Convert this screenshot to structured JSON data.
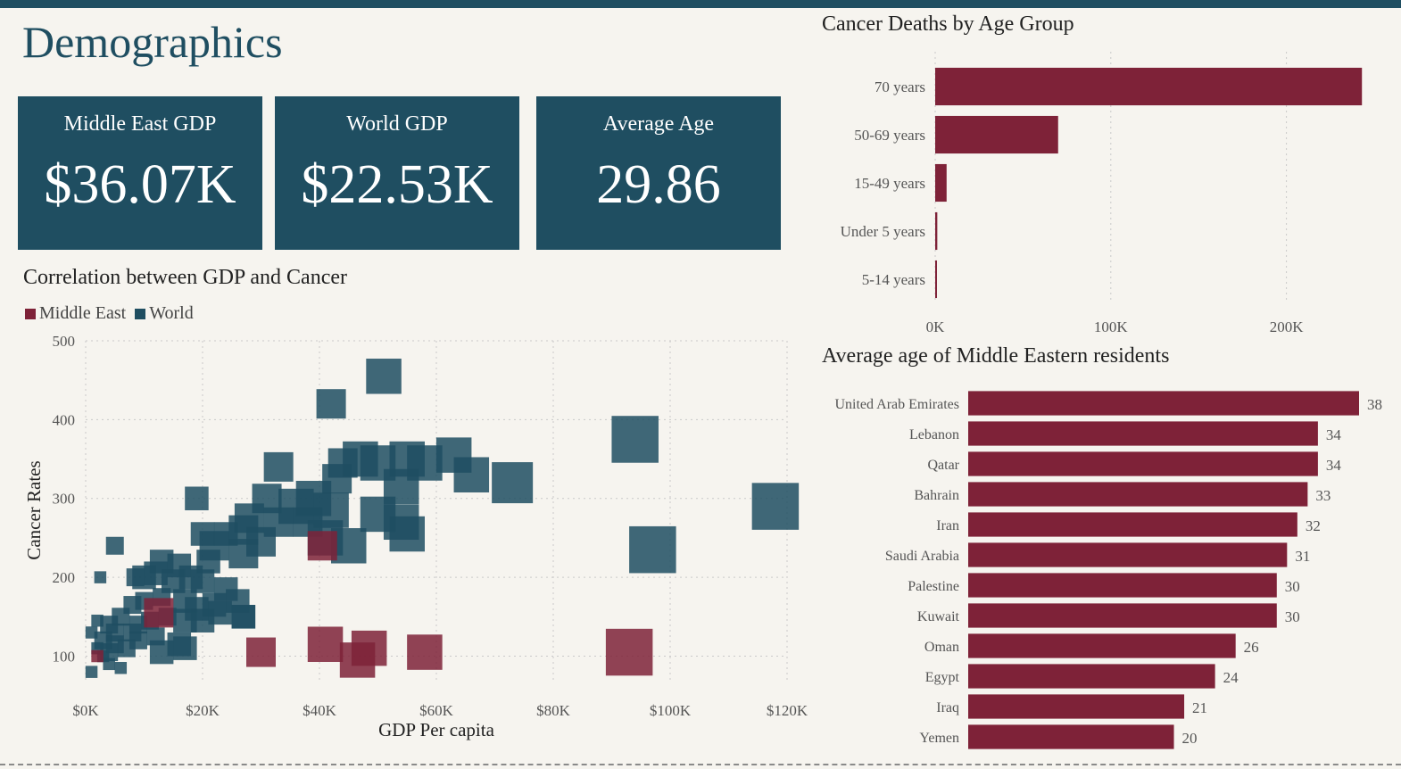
{
  "page": {
    "title": "Demographics"
  },
  "colors": {
    "world": "#1f4e61",
    "middle_east": "#7e2238",
    "panel": "#1f4e61",
    "background": "#f6f4ef"
  },
  "kpis": [
    {
      "label": "Middle East GDP",
      "value": "$36.07K"
    },
    {
      "label": "World GDP",
      "value": "$22.53K"
    },
    {
      "label": "Average Age",
      "value": "29.86"
    }
  ],
  "chart_data": [
    {
      "type": "scatter",
      "title": "Correlation between GDP and Cancer",
      "xlabel": "GDP Per capita",
      "ylabel": "Cancer Rates",
      "xlim": [
        0,
        120000
      ],
      "ylim": [
        70,
        500
      ],
      "x_ticks": [
        0,
        20000,
        40000,
        60000,
        80000,
        100000,
        120000
      ],
      "x_tick_labels": [
        "$0K",
        "$20K",
        "$40K",
        "$60K",
        "$80K",
        "$100K",
        "$120K"
      ],
      "y_ticks": [
        100,
        200,
        300,
        400,
        500
      ],
      "y_tick_labels": [
        "100",
        "200",
        "300",
        "400",
        "500"
      ],
      "grid": true,
      "legend_position": "top-left",
      "series": [
        {
          "name": "Middle East",
          "color": "#7e2238",
          "points": [
            [
              40500,
              240,
              4
            ],
            [
              30000,
              105,
              4
            ],
            [
              41000,
              115,
              5
            ],
            [
              46500,
              95,
              5
            ],
            [
              48500,
              110,
              5
            ],
            [
              58000,
              105,
              5
            ],
            [
              93000,
              105,
              7
            ],
            [
              12500,
              155,
              4
            ],
            [
              2000,
              100,
              1
            ]
          ]
        },
        {
          "name": "World",
          "color": "#1f4e61",
          "points": [
            [
              51000,
              455,
              5
            ],
            [
              42000,
              420,
              4
            ],
            [
              94000,
              375,
              7
            ],
            [
              63000,
              355,
              5
            ],
            [
              66000,
              330,
              5
            ],
            [
              73000,
              320,
              6
            ],
            [
              118000,
              290,
              7
            ],
            [
              97000,
              235,
              7
            ],
            [
              33000,
              340,
              4
            ],
            [
              44000,
              345,
              4
            ],
            [
              47000,
              350,
              5
            ],
            [
              50000,
              345,
              5
            ],
            [
              55000,
              350,
              5
            ],
            [
              58000,
              345,
              5
            ],
            [
              54000,
              315,
              5
            ],
            [
              43000,
              325,
              4
            ],
            [
              39000,
              300,
              5
            ],
            [
              42000,
              285,
              5
            ],
            [
              36000,
              290,
              5
            ],
            [
              31000,
              300,
              4
            ],
            [
              28000,
              275,
              4
            ],
            [
              33000,
              270,
              4
            ],
            [
              38000,
              270,
              4
            ],
            [
              50000,
              280,
              5
            ],
            [
              54000,
              270,
              5
            ],
            [
              55000,
              255,
              5
            ],
            [
              45000,
              240,
              5
            ],
            [
              41000,
              250,
              5
            ],
            [
              30000,
              245,
              4
            ],
            [
              27000,
              230,
              4
            ],
            [
              22000,
              240,
              4
            ],
            [
              20000,
              255,
              3
            ],
            [
              24000,
              255,
              3
            ],
            [
              19000,
              300,
              3
            ],
            [
              27000,
              260,
              4
            ],
            [
              13000,
              220,
              3
            ],
            [
              16000,
              215,
              3
            ],
            [
              12000,
              205,
              3
            ],
            [
              10000,
              200,
              3
            ],
            [
              15000,
              195,
              3
            ],
            [
              18000,
              200,
              3
            ],
            [
              21000,
              220,
              3
            ],
            [
              20000,
              195,
              3
            ],
            [
              24000,
              185,
              3
            ],
            [
              8000,
              165,
              2
            ],
            [
              10000,
              170,
              2
            ],
            [
              13000,
              175,
              2
            ],
            [
              17000,
              170,
              3
            ],
            [
              19000,
              160,
              3
            ],
            [
              22000,
              165,
              3
            ],
            [
              26000,
              170,
              3
            ],
            [
              27000,
              150,
              3
            ],
            [
              17000,
              145,
              3
            ],
            [
              20000,
              145,
              3
            ],
            [
              23000,
              155,
              3
            ],
            [
              14000,
              150,
              2
            ],
            [
              11000,
              145,
              2
            ],
            [
              9000,
              140,
              2
            ],
            [
              6000,
              150,
              2
            ],
            [
              4000,
              140,
              2
            ],
            [
              2000,
              145,
              1
            ],
            [
              5000,
              130,
              2
            ],
            [
              8000,
              130,
              2
            ],
            [
              3000,
              120,
              2
            ],
            [
              5000,
              115,
              2
            ],
            [
              7000,
              110,
              2
            ],
            [
              4000,
              105,
              2
            ],
            [
              2000,
              110,
              1
            ],
            [
              1000,
              130,
              1
            ],
            [
              9000,
              120,
              2
            ],
            [
              12000,
              125,
              2
            ],
            [
              16000,
              115,
              3
            ],
            [
              13000,
              105,
              3
            ],
            [
              17000,
              110,
              3
            ],
            [
              3000,
              100,
              1
            ],
            [
              4000,
              90,
              1
            ],
            [
              1000,
              80,
              1
            ],
            [
              6000,
              85,
              1
            ],
            [
              5000,
              240,
              2
            ],
            [
              2500,
              200,
              1
            ],
            [
              8500,
              200,
              2
            ],
            [
              27000,
              150,
              3
            ]
          ]
        }
      ]
    },
    {
      "type": "bar",
      "orientation": "horizontal",
      "title": "Cancer Deaths by Age Group",
      "categories": [
        "70 years",
        "50-69 years",
        "15-49 years",
        "Under 5 years",
        "5-14 years"
      ],
      "values": [
        243000,
        70000,
        6500,
        1200,
        800
      ],
      "xlim": [
        0,
        250000
      ],
      "x_ticks": [
        0,
        100000,
        200000
      ],
      "x_tick_labels": [
        "0K",
        "100K",
        "200K"
      ],
      "grid": true,
      "color": "#7e2238"
    },
    {
      "type": "bar",
      "orientation": "horizontal",
      "title": "Average age of Middle Eastern residents",
      "categories": [
        "United Arab Emirates",
        "Lebanon",
        "Qatar",
        "Bahrain",
        "Iran",
        "Saudi Arabia",
        "Palestine",
        "Kuwait",
        "Oman",
        "Egypt",
        "Iraq",
        "Yemen"
      ],
      "values": [
        38,
        34,
        34,
        33,
        32,
        31,
        30,
        30,
        26,
        24,
        21,
        20
      ],
      "data_labels": [
        "38",
        "34",
        "34",
        "33",
        "32",
        "31",
        "30",
        "30",
        "26",
        "24",
        "21",
        "20"
      ],
      "color": "#7e2238"
    }
  ]
}
